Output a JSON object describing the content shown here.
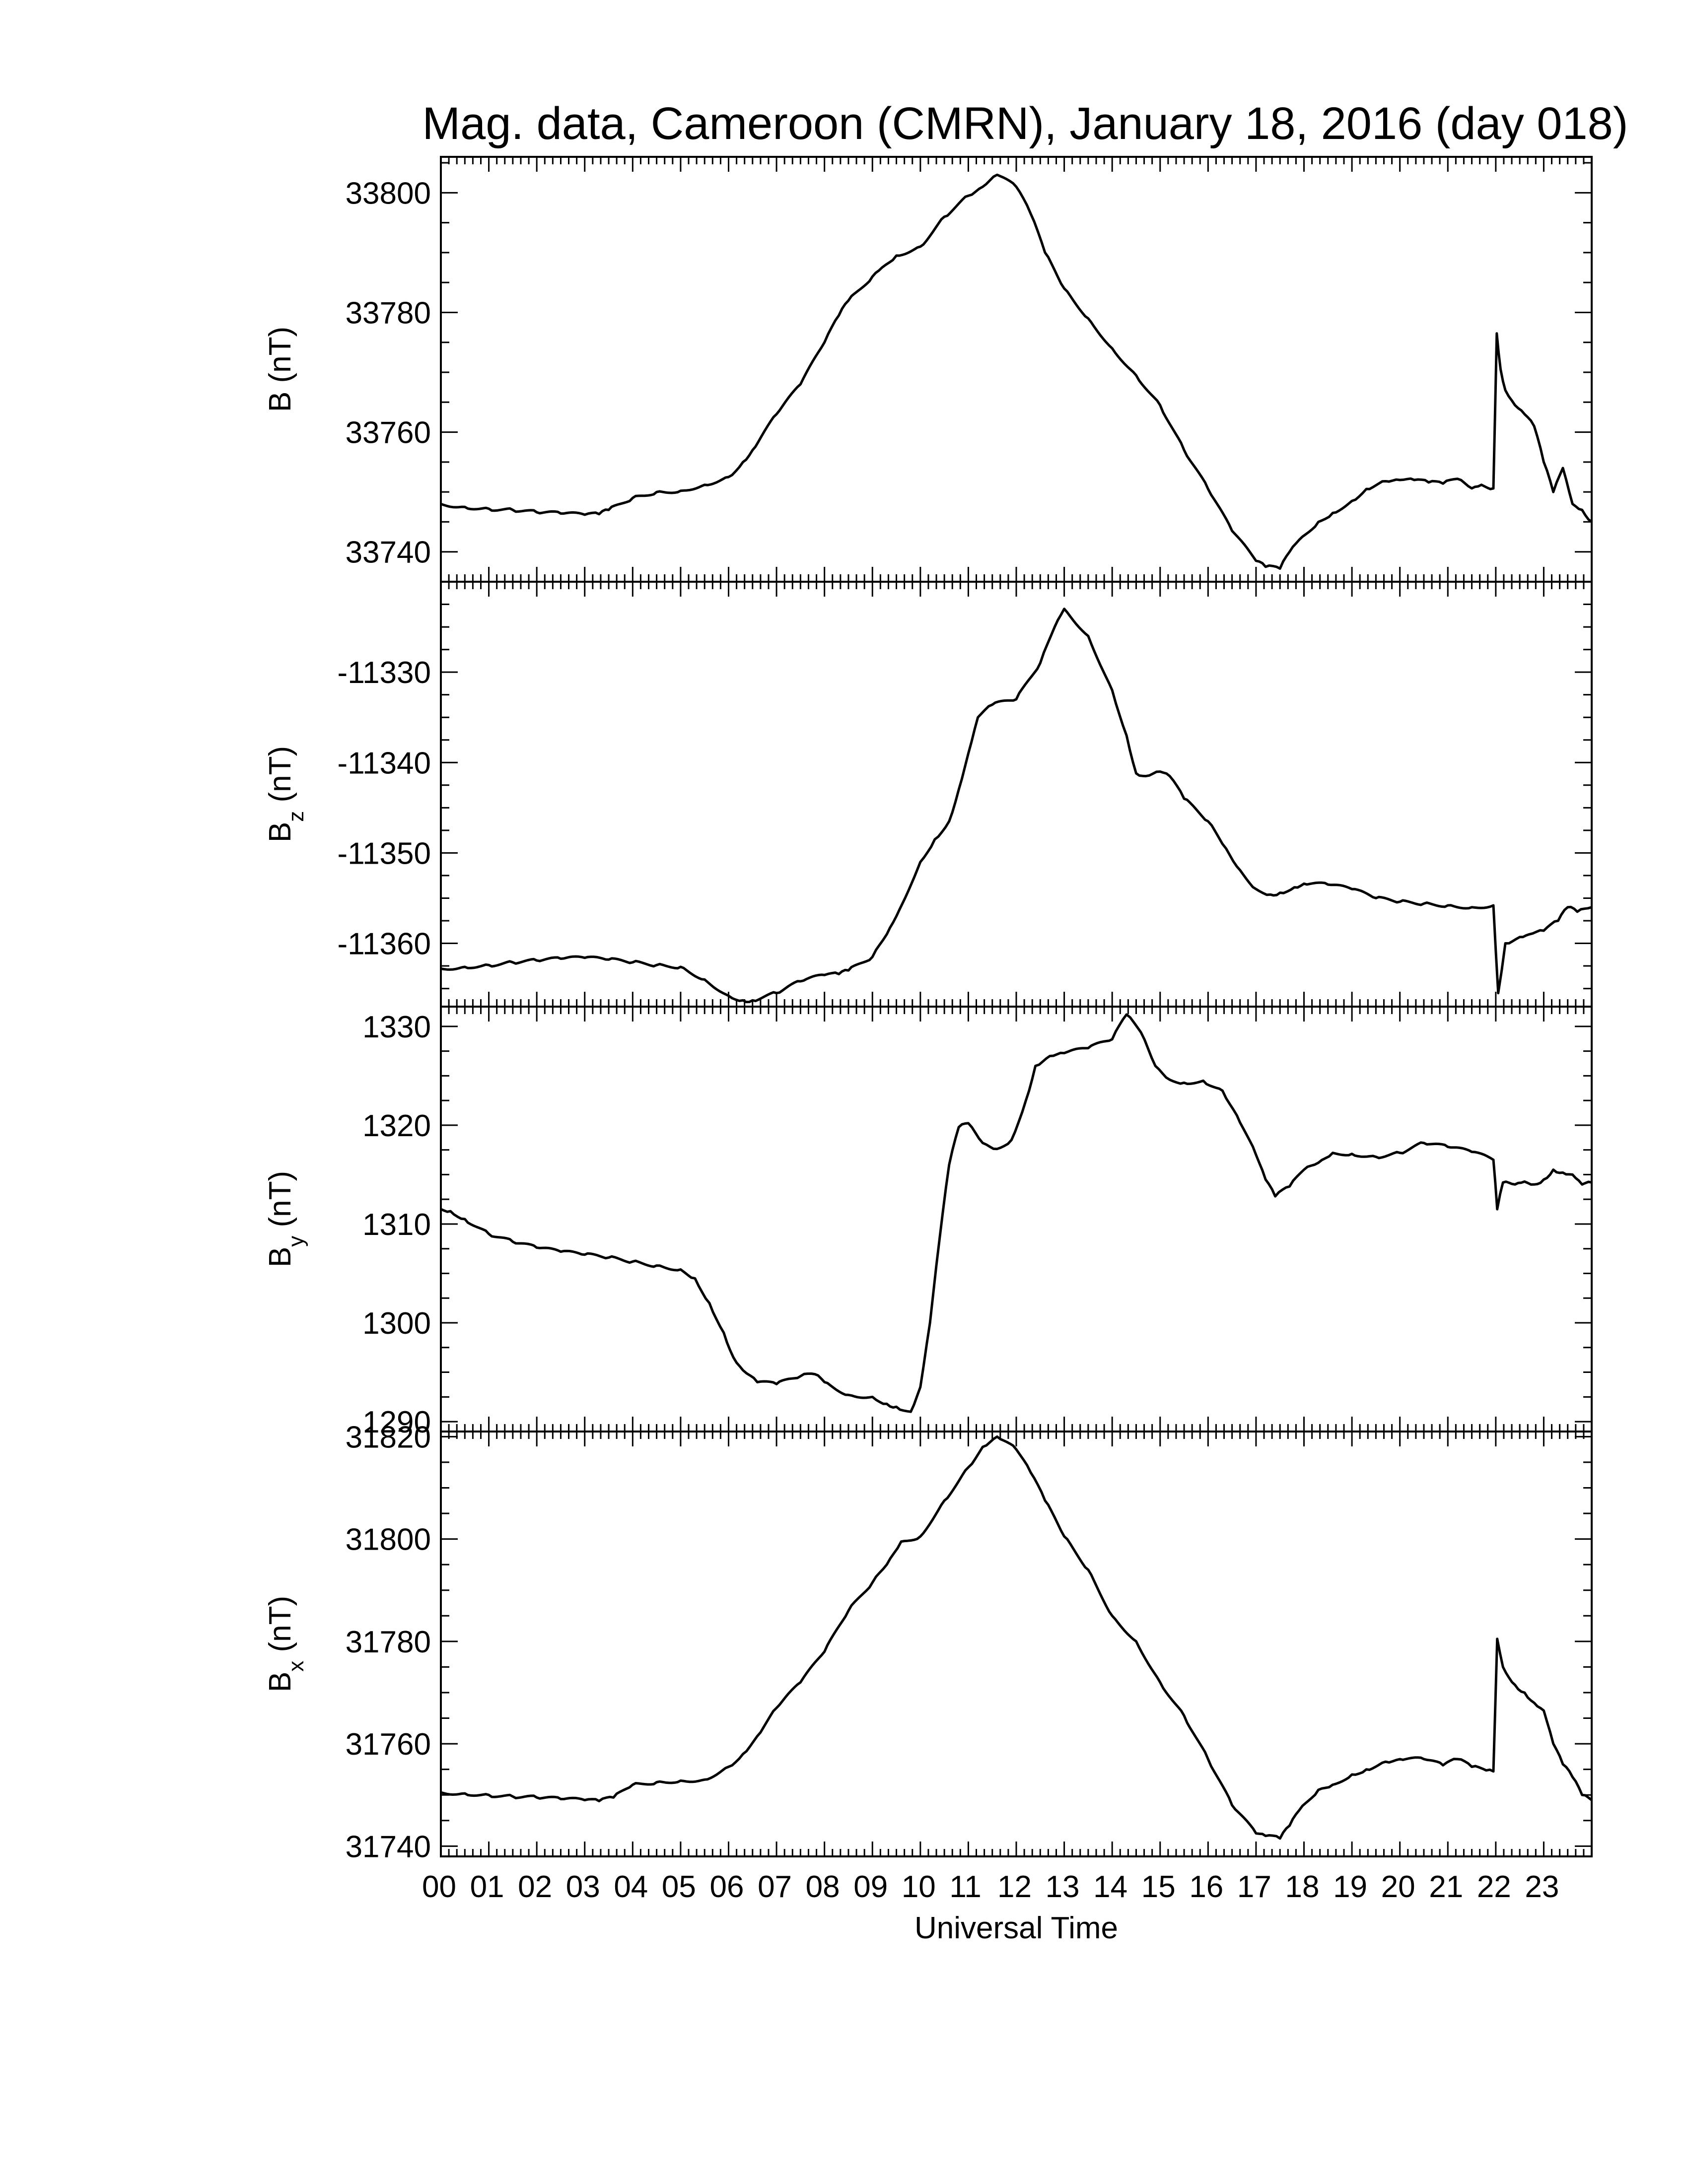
{
  "chart_data": {
    "type": "line",
    "title": "Mag. data, Cameroon (CMRN), January 18, 2016 (day 018)",
    "xlabel": "Universal Time",
    "x_tick_labels": [
      "00",
      "01",
      "02",
      "03",
      "04",
      "05",
      "06",
      "07",
      "08",
      "09",
      "10",
      "11",
      "12",
      "13",
      "14",
      "15",
      "16",
      "17",
      "18",
      "19",
      "20",
      "21",
      "22",
      "23"
    ],
    "x_range_hours": [
      0,
      24
    ],
    "grid": false,
    "legend": "none",
    "line_color": "#000000",
    "panels": [
      {
        "id": "B",
        "ylabel": "B (nT)",
        "ylabel_main": "B",
        "ylabel_sub": "",
        "ylabel_unit": " (nT)",
        "ylim": [
          33735,
          33806
        ],
        "yticks": [
          33740,
          33760,
          33780,
          33800
        ],
        "series": [
          {
            "x": [
              0,
              0.5,
              1,
              1.5,
              2,
              2.5,
              3,
              3.3,
              3.5,
              4,
              4.5,
              5,
              5.5,
              6,
              6.3,
              6.5,
              7,
              7.5,
              8,
              8.3,
              8.5,
              9,
              9.2,
              9.5,
              10,
              10.5,
              11,
              11.3,
              11.6,
              12,
              12.3,
              12.6,
              13,
              13.5,
              14,
              14.5,
              15,
              15.5,
              16,
              16.5,
              17,
              17.2,
              17.5,
              17.7,
              17.9,
              18.3,
              18.6,
              19,
              19.3,
              19.7,
              20,
              20.3,
              20.6,
              20.9,
              21.2,
              21.5,
              21.7,
              21.95,
              22.02,
              22.1,
              22.2,
              22.4,
              22.6,
              22.8,
              23,
              23.2,
              23.4,
              23.6,
              23.8,
              24
            ],
            "y": [
              33748,
              33747.5,
              33747.2,
              33747,
              33746.6,
              33746.4,
              33746.2,
              33746.3,
              33747,
              33749,
              33750,
              33750.2,
              33751.2,
              33752.5,
              33755,
              33757,
              33763,
              33768,
              33775,
              33779.5,
              33782,
              33786,
              33787.5,
              33789.5,
              33791,
              33796,
              33799.5,
              33801,
              33803,
              33801,
              33796.5,
              33790,
              33784,
              33779,
              33774,
              33769.5,
              33764.5,
              33757,
              33750.5,
              33743.5,
              33738.5,
              33737.5,
              33737.2,
              33740,
              33742,
              33745,
              33746.5,
              33748.5,
              33750.5,
              33751.8,
              33752,
              33752,
              33751.6,
              33751.4,
              33752.2,
              33750.6,
              33751.2,
              33750.6,
              33776.5,
              33770.5,
              33767,
              33764.5,
              33763,
              33761,
              33755,
              33750,
              33754,
              33748,
              33747,
              33745
            ]
          }
        ]
      },
      {
        "id": "Bz",
        "ylabel": "Bz (nT)",
        "ylabel_main": "B",
        "ylabel_sub": "z",
        "ylabel_unit": " (nT)",
        "ylim": [
          -11367,
          -11320
        ],
        "yticks": [
          -11360,
          -11350,
          -11340,
          -11330
        ],
        "series": [
          {
            "x": [
              0,
              0.5,
              1,
              1.5,
              2,
              2.5,
              3,
              3.5,
              4,
              4.5,
              5,
              5.5,
              6,
              6.3,
              6.5,
              7,
              7.5,
              8,
              8.3,
              8.5,
              9,
              9.3,
              9.5,
              10,
              10.3,
              10.6,
              10.8,
              11,
              11.2,
              11.5,
              12,
              12.5,
              12.8,
              13,
              13.5,
              14,
              14.3,
              14.5,
              14.7,
              15,
              15.2,
              15.5,
              16,
              16.3,
              16.6,
              17,
              17.3,
              17.5,
              17.8,
              18,
              18.5,
              19,
              19.5,
              20,
              20.5,
              21,
              21.5,
              21.95,
              22.05,
              22.2,
              22.5,
              22.7,
              23,
              23.3,
              23.5,
              23.7,
              24
            ],
            "y": [
              -11362.8,
              -11362.6,
              -11362.4,
              -11362.1,
              -11361.9,
              -11361.7,
              -11361.6,
              -11361.8,
              -11362.1,
              -11362.4,
              -11362.6,
              -11364,
              -11365.8,
              -11366.3,
              -11366.3,
              -11365.5,
              -11364.2,
              -11363.5,
              -11363.4,
              -11363,
              -11361.5,
              -11359,
              -11357,
              -11351,
              -11348.5,
              -11346.5,
              -11343,
              -11339,
              -11335,
              -11333.6,
              -11333,
              -11329,
              -11325,
              -11323,
              -11326,
              -11332,
              -11337,
              -11341.2,
              -11341.5,
              -11341,
              -11341.5,
              -11344,
              -11346.5,
              -11349,
              -11351.5,
              -11354,
              -11354.6,
              -11354.4,
              -11353.8,
              -11353.4,
              -11353.5,
              -11354,
              -11355,
              -11355.4,
              -11355.6,
              -11355.8,
              -11356,
              -11355.8,
              -11365.5,
              -11360,
              -11359.3,
              -11359,
              -11358.6,
              -11357.5,
              -11356,
              -11356.5,
              -11356
            ]
          }
        ]
      },
      {
        "id": "By",
        "ylabel": "By (nT)",
        "ylabel_main": "B",
        "ylabel_sub": "y",
        "ylabel_unit": " (nT)",
        "ylim": [
          1289,
          1332
        ],
        "yticks": [
          1290,
          1300,
          1310,
          1320,
          1330
        ],
        "series": [
          {
            "x": [
              0,
              0.2,
              0.5,
              1,
              1.5,
              2,
              2.5,
              3,
              3.5,
              4,
              4.5,
              5,
              5.3,
              5.6,
              5.9,
              6.1,
              6.3,
              6.6,
              7,
              7.5,
              7.8,
              8,
              8.5,
              9,
              9.3,
              9.5,
              9.8,
              10,
              10.2,
              10.4,
              10.6,
              10.8,
              11,
              11.3,
              11.6,
              11.9,
              12.2,
              12.4,
              12.7,
              13,
              13.5,
              14,
              14.3,
              14.6,
              14.9,
              15.2,
              15.5,
              15.9,
              16.3,
              16.6,
              17,
              17.2,
              17.4,
              17.7,
              18,
              18.3,
              18.6,
              19,
              19.5,
              20,
              20.5,
              21,
              21.5,
              21.95,
              22.03,
              22.15,
              22.4,
              22.6,
              22.8,
              23,
              23.2,
              23.4,
              23.6,
              23.8,
              24
            ],
            "y": [
              1311.5,
              1311.3,
              1310.5,
              1309,
              1308.2,
              1307.6,
              1307.2,
              1306.9,
              1306.6,
              1306.2,
              1305.8,
              1305.4,
              1304.5,
              1302,
              1299,
              1296.5,
              1295.2,
              1294,
              1293.8,
              1294.6,
              1294.8,
              1294,
              1292.7,
              1292.5,
              1291.8,
              1291.5,
              1291,
              1293.5,
              1300,
              1308.5,
              1316,
              1319.8,
              1320.2,
              1318.2,
              1317.6,
              1318.5,
              1322.5,
              1326,
              1327,
              1327.3,
              1327.8,
              1328.7,
              1331.2,
              1329.4,
              1326,
              1324.6,
              1324.3,
              1324.5,
              1323.5,
              1321,
              1317,
              1314.5,
              1312.8,
              1313.8,
              1315.5,
              1316.2,
              1317.2,
              1317.1,
              1316.8,
              1317.2,
              1318.2,
              1317.8,
              1317.3,
              1316.5,
              1311.5,
              1314.2,
              1314,
              1314.3,
              1314,
              1314.5,
              1315.5,
              1315.2,
              1315,
              1314,
              1314.2
            ]
          }
        ]
      },
      {
        "id": "Bx",
        "ylabel": "Bx (nT)",
        "ylabel_main": "B",
        "ylabel_sub": "x",
        "ylabel_unit": " (nT)",
        "ylim": [
          31738,
          31821
        ],
        "yticks": [
          31740,
          31760,
          31780,
          31800,
          31820
        ],
        "series": [
          {
            "x": [
              0,
              0.5,
              1,
              1.5,
              2,
              2.5,
              3,
              3.3,
              3.6,
              4,
              4.5,
              5,
              5.5,
              6,
              6.3,
              6.6,
              7,
              7.5,
              8,
              8.5,
              9,
              9.3,
              9.6,
              10,
              10.5,
              11,
              11.3,
              11.6,
              12,
              12.3,
              12.6,
              13,
              13.5,
              14,
              14.5,
              15,
              15.5,
              16,
              16.5,
              17,
              17.2,
              17.5,
              17.7,
              17.9,
              18.3,
              18.6,
              19,
              19.3,
              19.7,
              20,
              20.5,
              20.9,
              21.2,
              21.5,
              21.8,
              21.95,
              22.03,
              22.15,
              22.4,
              22.6,
              22.8,
              23,
              23.2,
              23.4,
              23.6,
              23.8,
              24
            ],
            "y": [
              31750.5,
              31750.3,
              31750,
              31749.7,
              31749.5,
              31749.2,
              31749,
              31748.8,
              31749.5,
              31752,
              31752.5,
              31752.8,
              31753,
              31755.5,
              31758,
              31761.5,
              31767,
              31772,
              31778,
              31786,
              31791.5,
              31795,
              31799.5,
              31800.5,
              31807.5,
              31814,
              31818,
              31820,
              31817.5,
              31813,
              31807.5,
              31800.5,
              31794,
              31785,
              31780,
              31772,
              31765.5,
              31757,
              31748,
              31742.5,
              31742,
              31741.5,
              31744,
              31747,
              31751,
              31752,
              31754,
              31755,
              31756.5,
              31757,
              31757,
              31755.8,
              31757,
              31755.5,
              31754.8,
              31754.6,
              31780.5,
              31775,
              31771.5,
              31770,
              31768,
              31766.5,
              31760,
              31756,
              31753.5,
              31750,
              31749
            ]
          }
        ]
      }
    ]
  }
}
